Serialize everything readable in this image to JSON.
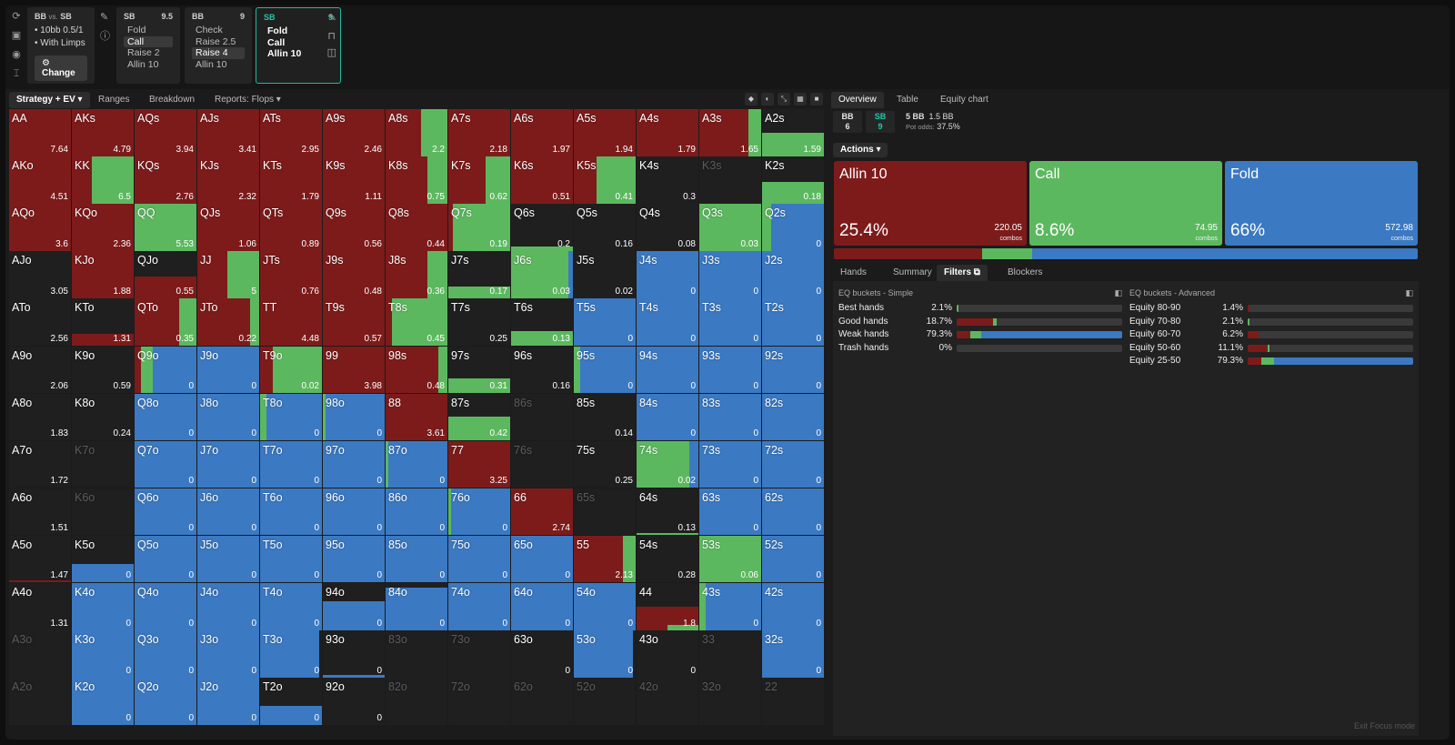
{
  "colors": {
    "allin": "#7d1b1b",
    "call": "#5cb85f",
    "fold": "#3b79c2",
    "empty": "#1f1f1f",
    "accent": "#21c8ac"
  },
  "toolbar_icons": [
    "refresh-icon",
    "save-icon",
    "gamepad-icon",
    "text-cursor-icon"
  ],
  "scenario": {
    "title_left": "BB",
    "title_mid": "vs.",
    "title_right": "SB",
    "lines": [
      "• 10bb 0.5/1",
      "• With Limps"
    ],
    "change_label": "Change"
  },
  "nodes": [
    {
      "player": "SB",
      "stack": "9.5",
      "options": [
        "Fold",
        "Call",
        "Raise 2",
        "Allin 10"
      ],
      "selected": 1
    },
    {
      "player": "BB",
      "stack": "9",
      "options": [
        "Check",
        "Raise 2.5",
        "Raise 4",
        "Allin 10"
      ],
      "selected": 2
    },
    {
      "player": "SB",
      "stack": "9",
      "options": [
        "Fold",
        "Call",
        "Allin 10"
      ],
      "selected": -1
    }
  ],
  "grid_tabs": [
    "Strategy + EV",
    "Ranges",
    "Breakdown",
    "Reports: Flops"
  ],
  "right_tabs": [
    "Overview",
    "Table",
    "Equity chart"
  ],
  "pot": {
    "bb_label": "BB",
    "bb_stack": "6",
    "sb_label": "SB",
    "sb_stack": "9",
    "pot": "5 BB",
    "bet": "1.5 BB",
    "pot_odds_label": "Pot odds:",
    "pot_odds": "37.5%"
  },
  "actions_label": "Actions",
  "actions": [
    {
      "name": "Allin 10",
      "pct": "25.4%",
      "combos": "220.05",
      "frac": 0.254,
      "color": "#7d1b1b"
    },
    {
      "name": "Call",
      "pct": "8.6%",
      "combos": "74.95",
      "frac": 0.086,
      "color": "#5cb85f"
    },
    {
      "name": "Fold",
      "pct": "66%",
      "combos": "572.98",
      "frac": 0.66,
      "color": "#3b79c2"
    }
  ],
  "combos_label": "combos",
  "bottom_tabs": [
    "Hands",
    "Summary",
    "Filters",
    "Blockers"
  ],
  "eq_simple": {
    "title": "EQ buckets - Simple",
    "rows": [
      {
        "label": "Best hands",
        "pct": "2.1%",
        "segs": [
          0,
          0.01,
          0
        ]
      },
      {
        "label": "Good hands",
        "pct": "18.7%",
        "segs": [
          0.22,
          0.02,
          0
        ]
      },
      {
        "label": "Weak hands",
        "pct": "79.3%",
        "segs": [
          0.08,
          0.07,
          0.85
        ]
      },
      {
        "label": "Trash hands",
        "pct": "0%",
        "segs": [
          0,
          0,
          0
        ]
      }
    ]
  },
  "eq_advanced": {
    "title": "EQ buckets - Advanced",
    "rows": [
      {
        "label": "Equity 80-90",
        "pct": "1.4%",
        "segs": [
          0.008,
          0,
          0
        ]
      },
      {
        "label": "Equity 70-80",
        "pct": "2.1%",
        "segs": [
          0,
          0.012,
          0
        ]
      },
      {
        "label": "Equity 60-70",
        "pct": "6.2%",
        "segs": [
          0.065,
          0,
          0
        ]
      },
      {
        "label": "Equity 50-60",
        "pct": "11.1%",
        "segs": [
          0.12,
          0.01,
          0
        ]
      },
      {
        "label": "Equity 25-50",
        "pct": "79.3%",
        "segs": [
          0.08,
          0.08,
          0.84
        ]
      }
    ]
  },
  "exit_focus": "Exit Focus mode",
  "hands": [
    [
      [
        "AA",
        "7.64",
        1,
        0,
        0
      ],
      [
        "AKs",
        "4.79",
        1,
        0,
        0
      ],
      [
        "AQs",
        "3.94",
        1,
        0,
        0
      ],
      [
        "AJs",
        "3.41",
        1,
        0,
        0
      ],
      [
        "ATs",
        "2.95",
        1,
        0,
        0
      ],
      [
        "A9s",
        "2.46",
        1,
        0,
        0
      ],
      [
        "A8s",
        "2.2",
        0.57,
        0.43,
        0
      ],
      [
        "A7s",
        "2.18",
        1,
        0,
        0
      ],
      [
        "A6s",
        "1.97",
        1,
        0,
        0
      ],
      [
        "A5s",
        "1.94",
        1,
        0,
        0
      ],
      [
        "A4s",
        "1.79",
        1,
        0,
        0
      ],
      [
        "A3s",
        "1.65",
        0.8,
        0.2,
        0
      ],
      [
        "A2s",
        "1.59",
        0,
        0.5,
        0
      ]
    ],
    [
      [
        "AKo",
        "4.51",
        1,
        0,
        0
      ],
      [
        "KK",
        "6.5",
        0.33,
        0.67,
        0
      ],
      [
        "KQs",
        "2.76",
        1,
        0,
        0
      ],
      [
        "KJs",
        "2.32",
        1,
        0,
        0
      ],
      [
        "KTs",
        "1.79",
        1,
        0,
        0
      ],
      [
        "K9s",
        "1.11",
        1,
        0,
        0
      ],
      [
        "K8s",
        "0.75",
        0.68,
        0.32,
        0
      ],
      [
        "K7s",
        "0.62",
        0.6,
        0.4,
        0
      ],
      [
        "K6s",
        "0.51",
        1,
        0,
        0
      ],
      [
        "K5s",
        "0.41",
        0.37,
        0.63,
        0
      ],
      [
        "K4s",
        "0.3",
        0,
        0,
        0
      ],
      [
        "K3s",
        "",
        0,
        0,
        0
      ],
      [
        "K2s",
        "0.18",
        0,
        0.45,
        0
      ]
    ],
    [
      [
        "AQo",
        "3.6",
        1,
        0,
        0
      ],
      [
        "KQo",
        "2.36",
        1,
        0,
        0
      ],
      [
        "QQ",
        "5.53",
        0,
        1,
        0
      ],
      [
        "QJs",
        "1.06",
        1,
        0,
        0
      ],
      [
        "QTs",
        "0.89",
        1,
        0,
        0
      ],
      [
        "Q9s",
        "0.56",
        1,
        0,
        0
      ],
      [
        "Q8s",
        "0.44",
        1,
        0,
        0
      ],
      [
        "Q7s",
        "0.19",
        0.08,
        0.92,
        0
      ],
      [
        "Q6s",
        "0.2",
        0,
        0.1,
        0
      ],
      [
        "Q5s",
        "0.16",
        0,
        0,
        0
      ],
      [
        "Q4s",
        "0.08",
        0,
        0,
        0
      ],
      [
        "Q3s",
        "0.03",
        0,
        1,
        0
      ],
      [
        "Q2s",
        "0",
        0,
        0.15,
        0.85
      ]
    ],
    [
      [
        "AJo",
        "3.05",
        0,
        0,
        0
      ],
      [
        "KJo",
        "1.88",
        1,
        0,
        0
      ],
      [
        "QJo",
        "0.55",
        0.45,
        0,
        0
      ],
      [
        "JJ",
        "5",
        0.48,
        0.52,
        0
      ],
      [
        "JTs",
        "0.76",
        1,
        0,
        0
      ],
      [
        "J9s",
        "0.48",
        1,
        0,
        0
      ],
      [
        "J8s",
        "0.36",
        0.68,
        0.32,
        0
      ],
      [
        "J7s",
        "0.17",
        0,
        0.25,
        0
      ],
      [
        "J6s",
        "0.03",
        0,
        0.93,
        0.07
      ],
      [
        "J5s",
        "0.02",
        0,
        0,
        0
      ],
      [
        "J4s",
        "0",
        0,
        0,
        1
      ],
      [
        "J3s",
        "0",
        0,
        0,
        1
      ],
      [
        "J2s",
        "0",
        0,
        0,
        1
      ]
    ],
    [
      [
        "ATo",
        "2.56",
        0,
        0,
        0
      ],
      [
        "KTo",
        "1.31",
        0.25,
        0,
        0
      ],
      [
        "QTo",
        "0.35",
        0.72,
        0.28,
        0
      ],
      [
        "JTo",
        "0.22",
        0.85,
        0.15,
        0
      ],
      [
        "TT",
        "4.48",
        1,
        0,
        0
      ],
      [
        "T9s",
        "0.57",
        1,
        0,
        0
      ],
      [
        "T8s",
        "0.45",
        0.1,
        0.9,
        0
      ],
      [
        "T7s",
        "0.25",
        0,
        0,
        0
      ],
      [
        "T6s",
        "0.13",
        0,
        0.3,
        0
      ],
      [
        "T5s",
        "0",
        0,
        0,
        1
      ],
      [
        "T4s",
        "0",
        0,
        0,
        1
      ],
      [
        "T3s",
        "0",
        0,
        0,
        1
      ],
      [
        "T2s",
        "0",
        0,
        0,
        1
      ]
    ],
    [
      [
        "A9o",
        "2.06",
        0,
        0,
        0
      ],
      [
        "K9o",
        "0.59",
        0,
        0,
        0
      ],
      [
        "Q9o",
        "0",
        0.1,
        0.2,
        0.7
      ],
      [
        "J9o",
        "0",
        0,
        0,
        1
      ],
      [
        "T9o",
        "0.02",
        0.2,
        0.8,
        0
      ],
      [
        "99",
        "3.98",
        1,
        0,
        0
      ],
      [
        "98s",
        "0.48",
        0.85,
        0.15,
        0
      ],
      [
        "97s",
        "0.31",
        0,
        0.3,
        0
      ],
      [
        "96s",
        "0.16",
        0,
        0,
        0
      ],
      [
        "95s",
        "0",
        0,
        0.1,
        0.9
      ],
      [
        "94s",
        "0",
        0,
        0,
        1
      ],
      [
        "93s",
        "0",
        0,
        0,
        1
      ],
      [
        "92s",
        "0",
        0,
        0,
        1
      ]
    ],
    [
      [
        "A8o",
        "1.83",
        0,
        0,
        0
      ],
      [
        "K8o",
        "0.24",
        0,
        0,
        0
      ],
      [
        "Q8o",
        "0",
        0,
        0,
        1
      ],
      [
        "J8o",
        "0",
        0,
        0,
        1
      ],
      [
        "T8o",
        "0",
        0,
        0.1,
        0.9
      ],
      [
        "98o",
        "0",
        0,
        0.05,
        0.95
      ],
      [
        "88",
        "3.61",
        1,
        0,
        0
      ],
      [
        "87s",
        "0.42",
        0,
        0.5,
        0
      ],
      [
        "86s",
        "",
        0,
        0,
        0
      ],
      [
        "85s",
        "0.14",
        0,
        0,
        0
      ],
      [
        "84s",
        "0",
        0,
        0,
        1
      ],
      [
        "83s",
        "0",
        0,
        0,
        1
      ],
      [
        "82s",
        "0",
        0,
        0,
        1
      ]
    ],
    [
      [
        "A7o",
        "1.72",
        0,
        0,
        0
      ],
      [
        "K7o",
        "",
        0,
        0,
        0
      ],
      [
        "Q7o",
        "0",
        0,
        0,
        1
      ],
      [
        "J7o",
        "0",
        0,
        0,
        1
      ],
      [
        "T7o",
        "0",
        0,
        0,
        1
      ],
      [
        "97o",
        "0",
        0,
        0,
        1
      ],
      [
        "87o",
        "0",
        0,
        0.05,
        0.95
      ],
      [
        "77",
        "3.25",
        1,
        0,
        0
      ],
      [
        "76s",
        "",
        0,
        0,
        0
      ],
      [
        "75s",
        "0.25",
        0,
        0,
        0
      ],
      [
        "74s",
        "0.02",
        0,
        0.85,
        0.15
      ],
      [
        "73s",
        "0",
        0,
        0,
        1
      ],
      [
        "72s",
        "0",
        0,
        0,
        1
      ]
    ],
    [
      [
        "A6o",
        "1.51",
        0,
        0,
        0
      ],
      [
        "K6o",
        "",
        0,
        0,
        0
      ],
      [
        "Q6o",
        "0",
        0,
        0,
        1
      ],
      [
        "J6o",
        "0",
        0,
        0,
        1
      ],
      [
        "T6o",
        "0",
        0,
        0,
        1
      ],
      [
        "96o",
        "0",
        0,
        0,
        1
      ],
      [
        "86o",
        "0",
        0,
        0,
        1
      ],
      [
        "76o",
        "0",
        0,
        0.05,
        0.95
      ],
      [
        "66",
        "2.74",
        1,
        0,
        0
      ],
      [
        "65s",
        "",
        0,
        0,
        0
      ],
      [
        "64s",
        "0.13",
        0,
        0.05,
        0
      ],
      [
        "63s",
        "0",
        0,
        0,
        1
      ],
      [
        "62s",
        "0",
        0,
        0,
        1
      ]
    ],
    [
      [
        "A5o",
        "1.47",
        0.05,
        0,
        0
      ],
      [
        "K5o",
        "0",
        0,
        0,
        0.4
      ],
      [
        "Q5o",
        "0",
        0,
        0,
        1
      ],
      [
        "J5o",
        "0",
        0,
        0,
        1
      ],
      [
        "T5o",
        "0",
        0,
        0,
        1
      ],
      [
        "95o",
        "0",
        0,
        0,
        1
      ],
      [
        "85o",
        "0",
        0,
        0,
        1
      ],
      [
        "75o",
        "0",
        0,
        0,
        1
      ],
      [
        "65o",
        "0",
        0,
        0,
        1
      ],
      [
        "55",
        "2.13",
        0.8,
        0.2,
        0
      ],
      [
        "54s",
        "0.28",
        0,
        0,
        0
      ],
      [
        "53s",
        "0.06",
        0,
        1,
        0
      ],
      [
        "52s",
        "0",
        0,
        0,
        1
      ]
    ],
    [
      [
        "A4o",
        "1.31",
        0,
        0,
        0
      ],
      [
        "K4o",
        "0",
        0,
        0,
        1
      ],
      [
        "Q4o",
        "0",
        0,
        0,
        1
      ],
      [
        "J4o",
        "0",
        0,
        0,
        1
      ],
      [
        "T4o",
        "0",
        0,
        0,
        1
      ],
      [
        "94o",
        "0",
        0,
        0,
        0.6
      ],
      [
        "84o",
        "0",
        0,
        0,
        0.9
      ],
      [
        "74o",
        "0",
        0,
        0,
        1
      ],
      [
        "64o",
        "0",
        0,
        0,
        1
      ],
      [
        "54o",
        "0",
        0,
        0,
        1
      ],
      [
        "44",
        "1.8",
        0.5,
        0.1,
        0
      ],
      [
        "43s",
        "0",
        0,
        0.1,
        0.9
      ],
      [
        "42s",
        "0",
        0,
        0,
        1
      ]
    ],
    [
      [
        "A3o",
        "",
        0,
        0,
        0
      ],
      [
        "K3o",
        "0",
        0,
        0,
        1
      ],
      [
        "Q3o",
        "0",
        0,
        0,
        1
      ],
      [
        "J3o",
        "0",
        0,
        0,
        1
      ],
      [
        "T3o",
        "0",
        0,
        0,
        0.95
      ],
      [
        "93o",
        "0",
        0,
        0,
        0.05
      ],
      [
        "83o",
        "",
        0,
        0,
        0
      ],
      [
        "73o",
        "",
        0,
        0,
        0
      ],
      [
        "63o",
        "0",
        0,
        0,
        0
      ],
      [
        "53o",
        "0",
        0,
        0,
        0.95
      ],
      [
        "43o",
        "0",
        0,
        0,
        0
      ],
      [
        "33",
        "",
        0,
        0,
        0
      ],
      [
        "32s",
        "0",
        0,
        0,
        1
      ]
    ],
    [
      [
        "A2o",
        "",
        0,
        0,
        0
      ],
      [
        "K2o",
        "0",
        0,
        0,
        1
      ],
      [
        "Q2o",
        "0",
        0,
        0,
        1
      ],
      [
        "J2o",
        "0",
        0,
        0,
        1
      ],
      [
        "T2o",
        "0",
        0,
        0,
        0.4
      ],
      [
        "92o",
        "0",
        0,
        0,
        0
      ],
      [
        "82o",
        "",
        0,
        0,
        0
      ],
      [
        "72o",
        "",
        0,
        0,
        0
      ],
      [
        "62o",
        "",
        0,
        0,
        0
      ],
      [
        "52o",
        "",
        0,
        0,
        0
      ],
      [
        "42o",
        "",
        0,
        0,
        0
      ],
      [
        "32o",
        "",
        0,
        0,
        0
      ],
      [
        "22",
        "",
        0,
        0,
        0
      ]
    ]
  ]
}
